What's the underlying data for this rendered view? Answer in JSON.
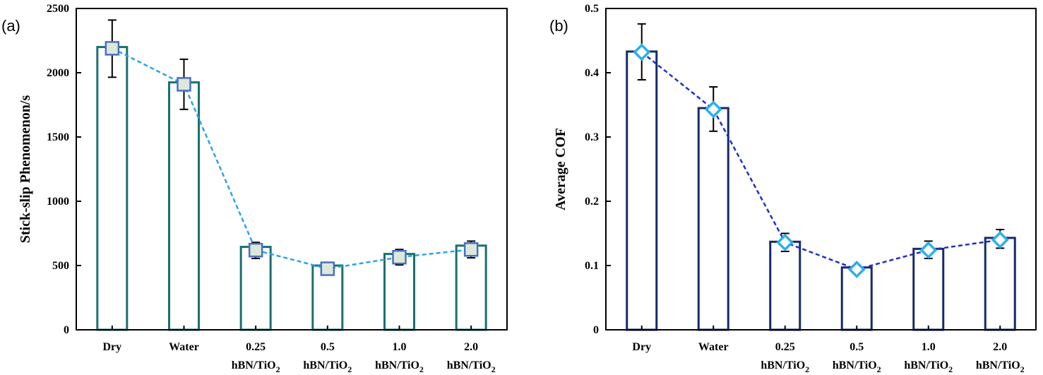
{
  "chart_data": [
    {
      "panel_label": "(a)",
      "type": "bar",
      "overlay": "line-with-markers",
      "ylabel": "Stick-slip Phenomenon/s",
      "ylim": [
        0,
        2500
      ],
      "yticks": [
        "0",
        "500",
        "1000",
        "1500",
        "2000",
        "2500"
      ],
      "categories": [
        {
          "main": "Dry",
          "sub": "",
          "subscript": ""
        },
        {
          "main": "Water",
          "sub": "",
          "subscript": ""
        },
        {
          "main": "0.25",
          "sub": "hBN/TiO",
          "subscript": "2"
        },
        {
          "main": "0.5",
          "sub": "hBN/TiO",
          "subscript": "2"
        },
        {
          "main": "1.0",
          "sub": "hBN/TiO",
          "subscript": "2"
        },
        {
          "main": "2.0",
          "sub": "hBN/TiO",
          "subscript": "2"
        }
      ],
      "bar_values": [
        2200,
        1925,
        645,
        500,
        590,
        655
      ],
      "line_values": [
        2190,
        1910,
        620,
        475,
        565,
        625
      ],
      "error_low": [
        1965,
        1715,
        555,
        470,
        505,
        560
      ],
      "error_high": [
        2410,
        2105,
        680,
        495,
        625,
        690
      ],
      "bar_color": "#1a7070",
      "line_color": "#2aa3e8",
      "marker": "square",
      "marker_fill": "#dde8d8",
      "marker_edge": "#4a6fc4",
      "grid": false
    },
    {
      "panel_label": "(b)",
      "type": "bar",
      "overlay": "line-with-markers",
      "ylabel": "Average COF",
      "ylim": [
        0,
        0.5
      ],
      "yticks": [
        "0",
        "0.1",
        "0.2",
        "0.3",
        "0.4",
        "0.5"
      ],
      "categories": [
        {
          "main": "Dry",
          "sub": "",
          "subscript": ""
        },
        {
          "main": "Water",
          "sub": "",
          "subscript": ""
        },
        {
          "main": "0.25",
          "sub": "hBN/TiO",
          "subscript": "2"
        },
        {
          "main": "0.5",
          "sub": "hBN/TiO",
          "subscript": "2"
        },
        {
          "main": "1.0",
          "sub": "hBN/TiO",
          "subscript": "2"
        },
        {
          "main": "2.0",
          "sub": "hBN/TiO",
          "subscript": "2"
        }
      ],
      "bar_values": [
        0.433,
        0.345,
        0.137,
        0.097,
        0.126,
        0.143
      ],
      "line_values": [
        0.432,
        0.343,
        0.136,
        0.094,
        0.124,
        0.14
      ],
      "error_low": [
        0.389,
        0.309,
        0.122,
        0.09,
        0.111,
        0.127
      ],
      "error_high": [
        0.476,
        0.378,
        0.15,
        0.1,
        0.138,
        0.156
      ],
      "bar_color": "#162a6a",
      "line_color": "#1f2fc8",
      "marker": "diamond",
      "marker_fill": "#ffffff",
      "marker_edge": "#2ab0ea",
      "grid": false
    }
  ]
}
